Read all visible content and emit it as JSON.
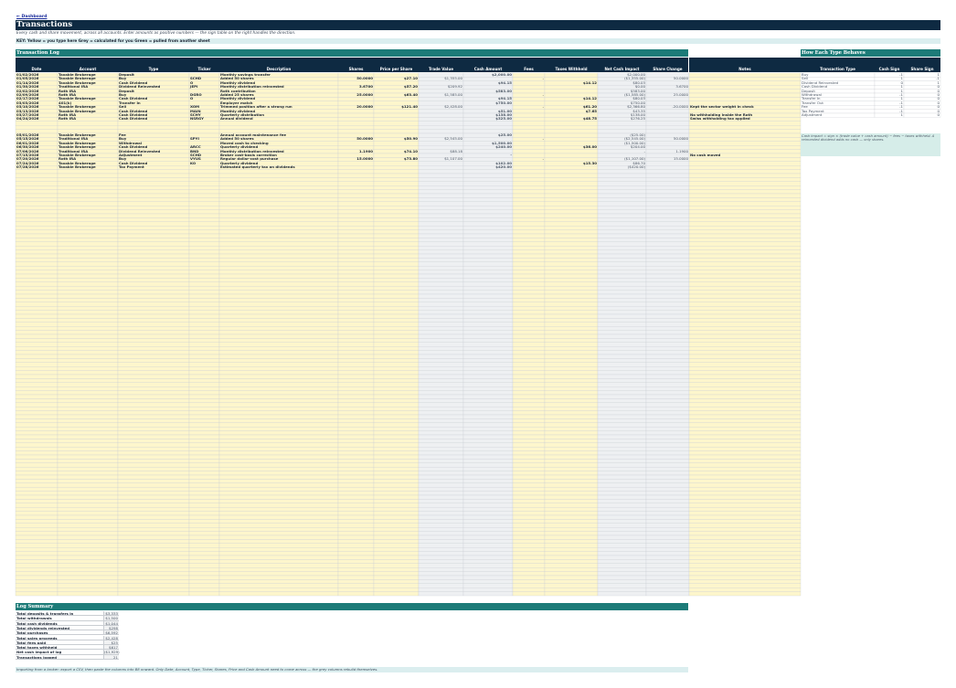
{
  "nav": {
    "dashboard_link": "← Dashboard"
  },
  "header": {
    "title": "Transactions",
    "subtitle": "Every cash and share movement, across all accounts. Enter amounts as positive numbers — the sign table on the right handles the direction.",
    "key": "KEY:   Yellow = you type here     Grey = calculated for you     Green = pulled from another sheet"
  },
  "log": {
    "title": "Transaction Log",
    "columns": [
      "Date",
      "Account",
      "Type",
      "Ticker",
      "Description",
      "Shares",
      "Price per Share",
      "Trade Value",
      "Cash Amount",
      "Fees",
      "Taxes Withheld",
      "Net Cash Impact",
      "Share Change",
      "Notes"
    ],
    "rows": [
      [
        "01/02/2026",
        "Taxable Brokerage",
        "Deposit",
        "",
        "Monthly savings transfer",
        "",
        "",
        "",
        "$2,000.00",
        "",
        "",
        "$2,000.00",
        "",
        ""
      ],
      [
        "01/05/2026",
        "Taxable Brokerage",
        "Buy",
        "SCHD",
        "Added 50 shares",
        "50.0000",
        "$27.10",
        "$1,355.00",
        "",
        "-",
        "",
        "($1,355.00)",
        "50.0000",
        ""
      ],
      [
        "01/14/2026",
        "Taxable Brokerage",
        "Cash Dividend",
        "O",
        "Monthly dividend",
        "",
        "",
        "",
        "$94.15",
        "",
        "$14.12",
        "$80.03",
        "",
        ""
      ],
      [
        "01/30/2026",
        "Traditional IRA",
        "Dividend Reinvested",
        "JEPI",
        "Monthly distribution reinvested",
        "3.6700",
        "$57.20",
        "$209.92",
        "",
        "",
        "",
        "$0.00",
        "3.6700",
        ""
      ],
      [
        "02/02/2026",
        "Roth IRA",
        "Deposit",
        "",
        "Roth contribution",
        "",
        "",
        "",
        "$583.00",
        "",
        "",
        "$583.00",
        "",
        ""
      ],
      [
        "02/09/2026",
        "Roth IRA",
        "Buy",
        "DGRO",
        "Added 25 shares",
        "25.0000",
        "$63.40",
        "$1,585.00",
        "",
        "-",
        "",
        "($1,585.00)",
        "25.0000",
        ""
      ],
      [
        "02/17/2026",
        "Taxable Brokerage",
        "Cash Dividend",
        "O",
        "Monthly dividend",
        "",
        "",
        "",
        "$94.15",
        "",
        "$14.12",
        "$80.03",
        "",
        ""
      ],
      [
        "03/03/2026",
        "401(k)",
        "Transfer In",
        "",
        "Employer match",
        "",
        "",
        "",
        "$750.00",
        "",
        "",
        "$750.00",
        "",
        ""
      ],
      [
        "03/10/2026",
        "Taxable Brokerage",
        "Sell",
        "XOM",
        "Trimmed position after a strong run",
        "20.0000",
        "$121.40",
        "$2,428.00",
        "",
        "-",
        "$61.20",
        "$2,366.80",
        "-20.0000",
        "Kept the sector weight in check"
      ],
      [
        "03/13/2026",
        "Taxable Brokerage",
        "Cash Dividend",
        "MAIN",
        "Monthly dividend",
        "",
        "",
        "",
        "$51.00",
        "",
        "$7.65",
        "$43.35",
        "",
        ""
      ],
      [
        "03/27/2026",
        "Roth IRA",
        "Cash Dividend",
        "SCHY",
        "Quarterly distribution",
        "",
        "",
        "",
        "$138.00",
        "",
        "",
        "$138.00",
        "",
        "No withholding inside the Roth"
      ],
      [
        "04/24/2026",
        "Roth IRA",
        "Cash Dividend",
        "NSRGY",
        "Annual dividend",
        "",
        "",
        "",
        "$325.00",
        "",
        "$48.75",
        "$276.25",
        "",
        "Swiss withholding tax applied"
      ],
      [
        "",
        "",
        "",
        "",
        "",
        "",
        "",
        "",
        "",
        "",
        "",
        "",
        "",
        ""
      ],
      [
        "",
        "",
        "",
        "",
        "",
        "",
        "",
        "",
        "",
        "",
        "",
        "",
        "",
        ""
      ],
      [
        "",
        "",
        "",
        "",
        "",
        "",
        "",
        "",
        "",
        "",
        "",
        "",
        "",
        ""
      ],
      [
        "05/01/2026",
        "Taxable Brokerage",
        "Fee",
        "",
        "Annual account maintenance fee",
        "",
        "",
        "",
        "$25.00",
        "",
        "",
        "($25.00)",
        "",
        ""
      ],
      [
        "05/15/2026",
        "Traditional IRA",
        "Buy",
        "SPYI",
        "Added 50 shares",
        "50.0000",
        "$50.90",
        "$2,545.00",
        "",
        "-",
        "",
        "($2,545.00)",
        "50.0000",
        ""
      ],
      [
        "06/01/2026",
        "Taxable Brokerage",
        "Withdrawal",
        "",
        "Moved cash to checking",
        "",
        "",
        "",
        "$1,500.00",
        "",
        "",
        "($1,500.00)",
        "",
        ""
      ],
      [
        "06/30/2026",
        "Taxable Brokerage",
        "Cash Dividend",
        "ARCC",
        "Quarterly dividend",
        "",
        "",
        "",
        "$240.00",
        "",
        "$36.00",
        "$204.00",
        "",
        ""
      ],
      [
        "07/06/2026",
        "Traditional IRA",
        "Dividend Reinvested",
        "BND",
        "Monthly distribution reinvested",
        "1.1900",
        "$74.10",
        "$88.18",
        "",
        "",
        "",
        "-",
        "1.1900",
        ""
      ],
      [
        "07/15/2026",
        "Taxable Brokerage",
        "Adjustment",
        "SCHD",
        "Broker cost-basis correction",
        "",
        "",
        "",
        "-",
        "",
        "",
        "",
        "",
        "No cash moved"
      ],
      [
        "07/20/2026",
        "Roth IRA",
        "Buy",
        "VYUS",
        "Regular dollar-cost purchase",
        "15.0000",
        "$73.80",
        "$1,107.00",
        "",
        "-",
        "",
        "($1,107.00)",
        "15.0000",
        ""
      ],
      [
        "07/24/2026",
        "Taxable Brokerage",
        "Cash Dividend",
        "KO",
        "Quarterly dividend",
        "",
        "",
        "",
        "$102.00",
        "",
        "$15.30",
        "$86.70",
        "",
        ""
      ],
      [
        "07/28/2026",
        "Taxable Brokerage",
        "Tax Payment",
        "",
        "Estimated quarterly tax on dividends",
        "",
        "",
        "",
        "$420.00",
        "",
        "",
        "($420.00)",
        "",
        ""
      ]
    ]
  },
  "behaves": {
    "title": "How Each Type Behaves",
    "columns": [
      "Transaction Type",
      "Cash Sign",
      "Share Sign"
    ],
    "rows": [
      [
        "Buy",
        "-1",
        "1"
      ],
      [
        "Sell",
        "1",
        "-1"
      ],
      [
        "Dividend Reinvested",
        "0",
        "1"
      ],
      [
        "Cash Dividend",
        "1",
        "0"
      ],
      [
        "Deposit",
        "1",
        "0"
      ],
      [
        "Withdrawal",
        "-1",
        "0"
      ],
      [
        "Transfer In",
        "1",
        "0"
      ],
      [
        "Transfer Out",
        "-1",
        "0"
      ],
      [
        "Fee",
        "-1",
        "0"
      ],
      [
        "Tax Payment",
        "-1",
        "0"
      ],
      [
        "Adjustment",
        "1",
        "0"
      ]
    ],
    "note": "Cash impact = sign × (trade value + cash amount) − fees − taxes withheld. A reinvested dividend adds no cash — only shares."
  },
  "summary": {
    "title": "Log Summary",
    "rows": [
      [
        "Total deposits & transfers in",
        "$3,333"
      ],
      [
        "Total withdrawals",
        "$1,500"
      ],
      [
        "Total cash dividends",
        "$1,044"
      ],
      [
        "Total dividends reinvested",
        "$298"
      ],
      [
        "Total purchases",
        "$6,592"
      ],
      [
        "Total sales proceeds",
        "$2,428"
      ],
      [
        "Total fees paid",
        "$25"
      ],
      [
        "Total taxes withheld",
        "$617"
      ],
      [
        "Net cash impact of log",
        "($1,929)"
      ],
      [
        "Transactions logged",
        "21"
      ]
    ]
  },
  "footer": "Importing from a broker: export a CSV, then paste the columns into B8 onward. Only Date, Account, Type, Ticker, Shares, Price and Cash Amount need to come across — the grey columns rebuild themselves.",
  "colors": {
    "navy": "#0e2a42",
    "teal": "#1d7b78",
    "input_yellow": "#fdf6cc",
    "calc_grey": "#eef0f2",
    "negative": "#c0392b"
  }
}
